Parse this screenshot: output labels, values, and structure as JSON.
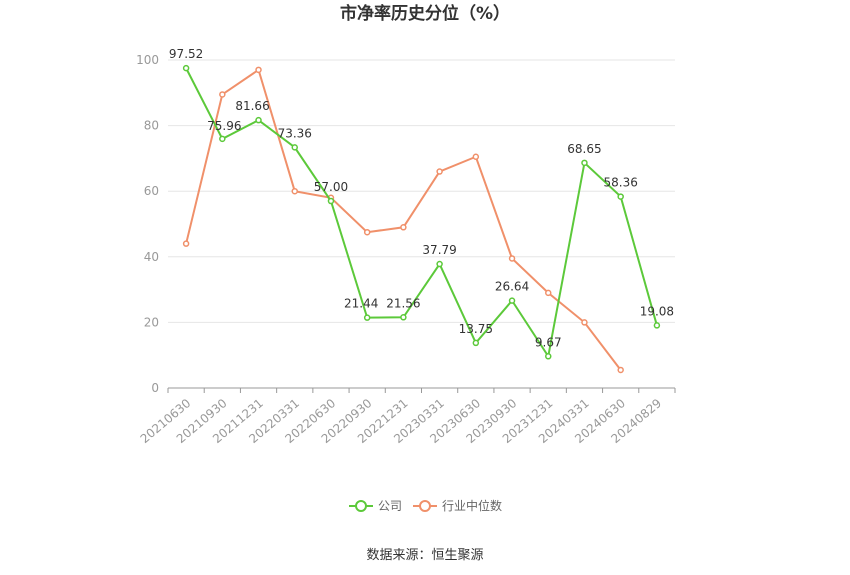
{
  "chart_data": {
    "type": "line",
    "title": "市净率历史分位（%）",
    "categories": [
      "20210630",
      "20210930",
      "20211231",
      "20220331",
      "20220630",
      "20220930",
      "20221231",
      "20230331",
      "20230630",
      "20230930",
      "20231231",
      "20240331",
      "20240630",
      "20240829"
    ],
    "ylim": [
      0,
      100
    ],
    "yticks": [
      0,
      20,
      40,
      60,
      80,
      100
    ],
    "grid": true,
    "legend_position": "bottom",
    "series": [
      {
        "name": "公司",
        "color": "#5cc93a",
        "values": [
          97.52,
          75.96,
          81.66,
          73.36,
          57.0,
          21.44,
          21.56,
          37.79,
          13.75,
          26.64,
          9.67,
          68.65,
          58.36,
          19.08
        ],
        "labels": [
          "97.52",
          "75.96",
          "81.66",
          "73.36",
          "57.00",
          "21.44",
          "21.56",
          "37.79",
          "13.75",
          "26.64",
          "9.67",
          "68.65",
          "58.36",
          "19.08"
        ]
      },
      {
        "name": "行业中位数",
        "color": "#f0906a",
        "values": [
          44,
          89.5,
          97,
          60,
          58,
          47.5,
          49,
          66,
          70.5,
          39.5,
          29,
          20,
          5.5,
          null
        ]
      }
    ],
    "source": "数据来源：恒生聚源"
  }
}
